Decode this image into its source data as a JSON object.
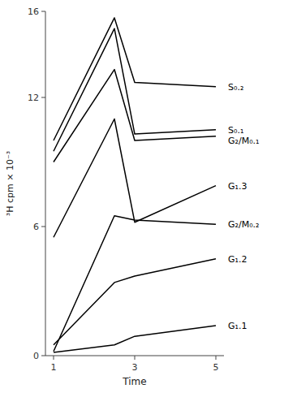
{
  "chart_data": {
    "type": "line",
    "xlabel": "Time",
    "ylabel": "³H cpm × 10⁻³",
    "xlim": [
      0.8,
      5.2
    ],
    "ylim": [
      0,
      16
    ],
    "xticks": [
      1,
      3,
      5
    ],
    "yticks": [
      0,
      6,
      12,
      16
    ],
    "color": "#000000",
    "x": [
      1,
      2.5,
      3,
      5
    ],
    "series": [
      {
        "name": "S₀.₂",
        "values": [
          10.0,
          15.7,
          12.7,
          12.5
        ]
      },
      {
        "name": "S₀.₁",
        "values": [
          9.5,
          15.2,
          10.3,
          10.5
        ]
      },
      {
        "name": "G₂/M₀.₁",
        "values": [
          9.0,
          13.3,
          10.0,
          10.2
        ]
      },
      {
        "name": "G₁.3",
        "values": [
          5.5,
          11.0,
          6.2,
          7.9
        ]
      },
      {
        "name": "G₂/M₀.₂",
        "values": [
          0.2,
          6.5,
          6.3,
          6.1
        ]
      },
      {
        "name": "G₁.2",
        "values": [
          0.5,
          3.4,
          3.7,
          4.5
        ]
      },
      {
        "name": "G₁.1",
        "values": [
          0.15,
          0.5,
          0.9,
          1.4
        ]
      }
    ]
  }
}
